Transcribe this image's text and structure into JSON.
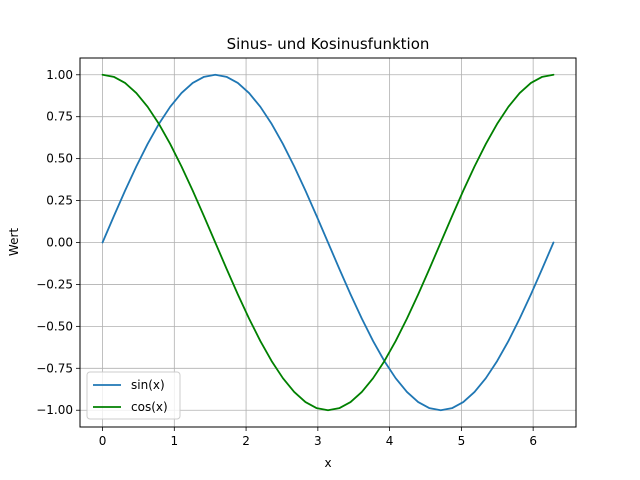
{
  "chart_data": {
    "type": "line",
    "title": "Sinus- und Kosinusfunktion",
    "xlabel": "x",
    "ylabel": "Wert",
    "xlim": [
      -0.314,
      6.597
    ],
    "ylim": [
      -1.1,
      1.1
    ],
    "x_ticks": [
      0,
      1,
      2,
      3,
      4,
      5,
      6
    ],
    "x_tick_labels": [
      "0",
      "1",
      "2",
      "3",
      "4",
      "5",
      "6"
    ],
    "y_ticks": [
      -1.0,
      -0.75,
      -0.5,
      -0.25,
      0.0,
      0.25,
      0.5,
      0.75,
      1.0
    ],
    "y_tick_labels": [
      "−1.00",
      "−0.75",
      "−0.50",
      "−0.25",
      "0.00",
      "0.25",
      "0.50",
      "0.75",
      "1.00"
    ],
    "grid": true,
    "legend_position": "lower-left",
    "x": [
      0.0,
      0.1571,
      0.3142,
      0.4712,
      0.6283,
      0.7854,
      0.9425,
      1.0996,
      1.2566,
      1.4137,
      1.5708,
      1.7279,
      1.885,
      2.042,
      2.1991,
      2.3562,
      2.5133,
      2.6704,
      2.8274,
      2.9845,
      3.1416,
      3.2987,
      3.4558,
      3.6128,
      3.7699,
      3.927,
      4.0841,
      4.2412,
      4.3982,
      4.5553,
      4.7124,
      4.8695,
      5.0265,
      5.1836,
      5.3407,
      5.4978,
      5.6549,
      5.8119,
      5.969,
      6.1261,
      6.2832
    ],
    "series": [
      {
        "name": "sin(x)",
        "color": "#1f77b4",
        "values": [
          0.0,
          0.1564,
          0.309,
          0.454,
          0.5878,
          0.7071,
          0.809,
          0.891,
          0.9511,
          0.9877,
          1.0,
          0.9877,
          0.9511,
          0.891,
          0.809,
          0.7071,
          0.5878,
          0.454,
          0.309,
          0.1564,
          0.0,
          -0.1564,
          -0.309,
          -0.454,
          -0.5878,
          -0.7071,
          -0.809,
          -0.891,
          -0.9511,
          -0.9877,
          -1.0,
          -0.9877,
          -0.9511,
          -0.891,
          -0.809,
          -0.7071,
          -0.5878,
          -0.454,
          -0.309,
          -0.1564,
          0.0
        ]
      },
      {
        "name": "cos(x)",
        "color": "#008000",
        "values": [
          1.0,
          0.9877,
          0.9511,
          0.891,
          0.809,
          0.7071,
          0.5878,
          0.454,
          0.309,
          0.1564,
          0.0,
          -0.1564,
          -0.309,
          -0.454,
          -0.5878,
          -0.7071,
          -0.809,
          -0.891,
          -0.9511,
          -0.9877,
          -1.0,
          -0.9877,
          -0.9511,
          -0.891,
          -0.809,
          -0.7071,
          -0.5878,
          -0.454,
          -0.309,
          -0.1564,
          0.0,
          0.1564,
          0.309,
          0.454,
          0.5878,
          0.7071,
          0.809,
          0.891,
          0.9511,
          0.9877,
          1.0
        ]
      }
    ]
  }
}
